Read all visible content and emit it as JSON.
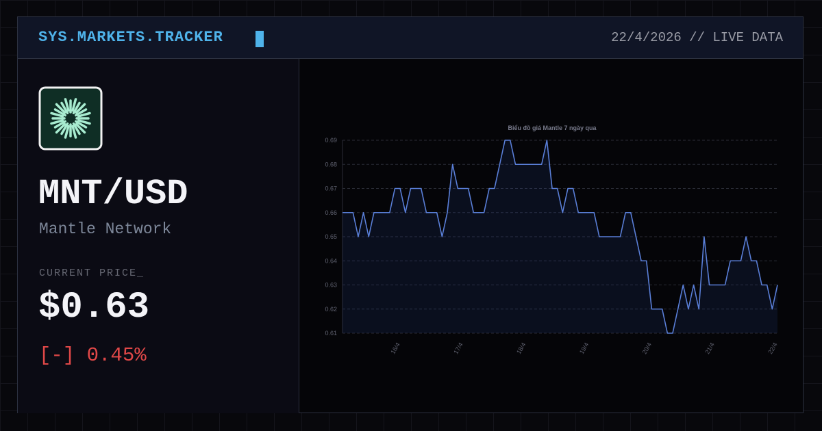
{
  "header": {
    "title": "SYS.MARKETS.TRACKER",
    "date": "22/4/2026 // LIVE DATA"
  },
  "asset": {
    "pair": "MNT/USD",
    "name": "Mantle Network",
    "price_label": "CURRENT PRICE_",
    "price": "$0.63",
    "change": "[-] 0.45%"
  },
  "chart_data": {
    "type": "line",
    "title": "Biểu đồ giá Mantle 7 ngày qua",
    "categories": [
      null,
      null,
      null,
      null,
      null,
      null,
      null,
      null,
      null,
      null,
      null,
      "16/4",
      null,
      null,
      null,
      null,
      null,
      null,
      null,
      null,
      null,
      null,
      null,
      "17/4",
      null,
      null,
      null,
      null,
      null,
      null,
      null,
      null,
      null,
      null,
      null,
      "18/4",
      null,
      null,
      null,
      null,
      null,
      null,
      null,
      null,
      null,
      null,
      null,
      "19/4",
      null,
      null,
      null,
      null,
      null,
      null,
      null,
      null,
      null,
      null,
      null,
      "20/4",
      null,
      null,
      null,
      null,
      null,
      null,
      null,
      null,
      null,
      null,
      null,
      "21/4",
      null,
      null,
      null,
      null,
      null,
      null,
      null,
      null,
      null,
      null,
      null,
      "22/4"
    ],
    "values": [
      0.66,
      0.66,
      0.66,
      0.65,
      0.66,
      0.65,
      0.66,
      0.66,
      0.66,
      0.66,
      0.67,
      0.67,
      0.66,
      0.67,
      0.67,
      0.67,
      0.66,
      0.66,
      0.66,
      0.65,
      0.66,
      0.68,
      0.67,
      0.67,
      0.67,
      0.66,
      0.66,
      0.66,
      0.67,
      0.67,
      0.68,
      0.69,
      0.69,
      0.68,
      0.68,
      0.68,
      0.68,
      0.68,
      0.68,
      0.69,
      0.67,
      0.67,
      0.66,
      0.67,
      0.67,
      0.66,
      0.66,
      0.66,
      0.66,
      0.65,
      0.65,
      0.65,
      0.65,
      0.65,
      0.66,
      0.66,
      0.65,
      0.64,
      0.64,
      0.62,
      0.62,
      0.62,
      0.61,
      0.61,
      0.62,
      0.63,
      0.62,
      0.63,
      0.62,
      0.65,
      0.63,
      0.63,
      0.63,
      0.63,
      0.64,
      0.64,
      0.64,
      0.65,
      0.64,
      0.64,
      0.63,
      0.63,
      0.62,
      0.63
    ],
    "color": "#5a7fd8",
    "ylim": [
      0.61,
      0.69
    ],
    "yticks": [
      0.61,
      0.62,
      0.63,
      0.64,
      0.65,
      0.66,
      0.67,
      0.68,
      0.69
    ],
    "grid": true
  }
}
